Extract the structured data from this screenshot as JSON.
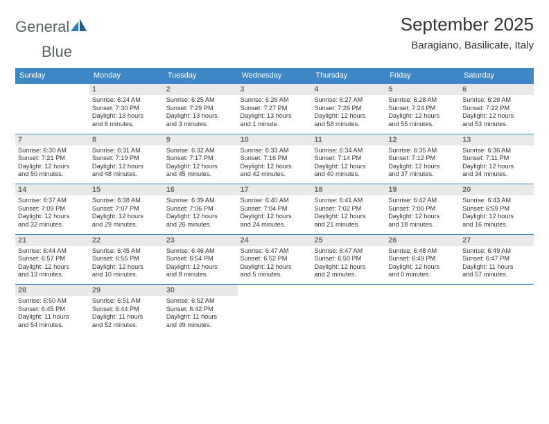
{
  "brand": {
    "word1": "General",
    "word2": "Blue"
  },
  "title": "September 2025",
  "location": "Baragiano, Basilicate, Italy",
  "colors": {
    "header_bg": "#3d87c7",
    "header_text": "#ffffff",
    "daynum_bg": "#e9e9e9",
    "daynum_text": "#6f6f6f",
    "row_divider": "#3d87c7",
    "body_text": "#333333",
    "logo_gray": "#5b6266",
    "logo_blue": "#2a7bbd",
    "background": "#ffffff"
  },
  "weekdays": [
    "Sunday",
    "Monday",
    "Tuesday",
    "Wednesday",
    "Thursday",
    "Friday",
    "Saturday"
  ],
  "weeks": [
    [
      {
        "n": "",
        "sr": "",
        "ss": "",
        "dl1": "",
        "dl2": ""
      },
      {
        "n": "1",
        "sr": "Sunrise: 6:24 AM",
        "ss": "Sunset: 7:30 PM",
        "dl1": "Daylight: 13 hours",
        "dl2": "and 6 minutes."
      },
      {
        "n": "2",
        "sr": "Sunrise: 6:25 AM",
        "ss": "Sunset: 7:29 PM",
        "dl1": "Daylight: 13 hours",
        "dl2": "and 3 minutes."
      },
      {
        "n": "3",
        "sr": "Sunrise: 6:26 AM",
        "ss": "Sunset: 7:27 PM",
        "dl1": "Daylight: 13 hours",
        "dl2": "and 1 minute."
      },
      {
        "n": "4",
        "sr": "Sunrise: 6:27 AM",
        "ss": "Sunset: 7:26 PM",
        "dl1": "Daylight: 12 hours",
        "dl2": "and 58 minutes."
      },
      {
        "n": "5",
        "sr": "Sunrise: 6:28 AM",
        "ss": "Sunset: 7:24 PM",
        "dl1": "Daylight: 12 hours",
        "dl2": "and 55 minutes."
      },
      {
        "n": "6",
        "sr": "Sunrise: 6:29 AM",
        "ss": "Sunset: 7:22 PM",
        "dl1": "Daylight: 12 hours",
        "dl2": "and 53 minutes."
      }
    ],
    [
      {
        "n": "7",
        "sr": "Sunrise: 6:30 AM",
        "ss": "Sunset: 7:21 PM",
        "dl1": "Daylight: 12 hours",
        "dl2": "and 50 minutes."
      },
      {
        "n": "8",
        "sr": "Sunrise: 6:31 AM",
        "ss": "Sunset: 7:19 PM",
        "dl1": "Daylight: 12 hours",
        "dl2": "and 48 minutes."
      },
      {
        "n": "9",
        "sr": "Sunrise: 6:32 AM",
        "ss": "Sunset: 7:17 PM",
        "dl1": "Daylight: 12 hours",
        "dl2": "and 45 minutes."
      },
      {
        "n": "10",
        "sr": "Sunrise: 6:33 AM",
        "ss": "Sunset: 7:16 PM",
        "dl1": "Daylight: 12 hours",
        "dl2": "and 42 minutes."
      },
      {
        "n": "11",
        "sr": "Sunrise: 6:34 AM",
        "ss": "Sunset: 7:14 PM",
        "dl1": "Daylight: 12 hours",
        "dl2": "and 40 minutes."
      },
      {
        "n": "12",
        "sr": "Sunrise: 6:35 AM",
        "ss": "Sunset: 7:12 PM",
        "dl1": "Daylight: 12 hours",
        "dl2": "and 37 minutes."
      },
      {
        "n": "13",
        "sr": "Sunrise: 6:36 AM",
        "ss": "Sunset: 7:11 PM",
        "dl1": "Daylight: 12 hours",
        "dl2": "and 34 minutes."
      }
    ],
    [
      {
        "n": "14",
        "sr": "Sunrise: 6:37 AM",
        "ss": "Sunset: 7:09 PM",
        "dl1": "Daylight: 12 hours",
        "dl2": "and 32 minutes."
      },
      {
        "n": "15",
        "sr": "Sunrise: 6:38 AM",
        "ss": "Sunset: 7:07 PM",
        "dl1": "Daylight: 12 hours",
        "dl2": "and 29 minutes."
      },
      {
        "n": "16",
        "sr": "Sunrise: 6:39 AM",
        "ss": "Sunset: 7:06 PM",
        "dl1": "Daylight: 12 hours",
        "dl2": "and 26 minutes."
      },
      {
        "n": "17",
        "sr": "Sunrise: 6:40 AM",
        "ss": "Sunset: 7:04 PM",
        "dl1": "Daylight: 12 hours",
        "dl2": "and 24 minutes."
      },
      {
        "n": "18",
        "sr": "Sunrise: 6:41 AM",
        "ss": "Sunset: 7:02 PM",
        "dl1": "Daylight: 12 hours",
        "dl2": "and 21 minutes."
      },
      {
        "n": "19",
        "sr": "Sunrise: 6:42 AM",
        "ss": "Sunset: 7:00 PM",
        "dl1": "Daylight: 12 hours",
        "dl2": "and 18 minutes."
      },
      {
        "n": "20",
        "sr": "Sunrise: 6:43 AM",
        "ss": "Sunset: 6:59 PM",
        "dl1": "Daylight: 12 hours",
        "dl2": "and 16 minutes."
      }
    ],
    [
      {
        "n": "21",
        "sr": "Sunrise: 6:44 AM",
        "ss": "Sunset: 6:57 PM",
        "dl1": "Daylight: 12 hours",
        "dl2": "and 13 minutes."
      },
      {
        "n": "22",
        "sr": "Sunrise: 6:45 AM",
        "ss": "Sunset: 6:55 PM",
        "dl1": "Daylight: 12 hours",
        "dl2": "and 10 minutes."
      },
      {
        "n": "23",
        "sr": "Sunrise: 6:46 AM",
        "ss": "Sunset: 6:54 PM",
        "dl1": "Daylight: 12 hours",
        "dl2": "and 8 minutes."
      },
      {
        "n": "24",
        "sr": "Sunrise: 6:47 AM",
        "ss": "Sunset: 6:52 PM",
        "dl1": "Daylight: 12 hours",
        "dl2": "and 5 minutes."
      },
      {
        "n": "25",
        "sr": "Sunrise: 6:47 AM",
        "ss": "Sunset: 6:50 PM",
        "dl1": "Daylight: 12 hours",
        "dl2": "and 2 minutes."
      },
      {
        "n": "26",
        "sr": "Sunrise: 6:48 AM",
        "ss": "Sunset: 6:49 PM",
        "dl1": "Daylight: 12 hours",
        "dl2": "and 0 minutes."
      },
      {
        "n": "27",
        "sr": "Sunrise: 6:49 AM",
        "ss": "Sunset: 6:47 PM",
        "dl1": "Daylight: 11 hours",
        "dl2": "and 57 minutes."
      }
    ],
    [
      {
        "n": "28",
        "sr": "Sunrise: 6:50 AM",
        "ss": "Sunset: 6:45 PM",
        "dl1": "Daylight: 11 hours",
        "dl2": "and 54 minutes."
      },
      {
        "n": "29",
        "sr": "Sunrise: 6:51 AM",
        "ss": "Sunset: 6:44 PM",
        "dl1": "Daylight: 11 hours",
        "dl2": "and 52 minutes."
      },
      {
        "n": "30",
        "sr": "Sunrise: 6:52 AM",
        "ss": "Sunset: 6:42 PM",
        "dl1": "Daylight: 11 hours",
        "dl2": "and 49 minutes."
      },
      {
        "n": "",
        "sr": "",
        "ss": "",
        "dl1": "",
        "dl2": ""
      },
      {
        "n": "",
        "sr": "",
        "ss": "",
        "dl1": "",
        "dl2": ""
      },
      {
        "n": "",
        "sr": "",
        "ss": "",
        "dl1": "",
        "dl2": ""
      },
      {
        "n": "",
        "sr": "",
        "ss": "",
        "dl1": "",
        "dl2": ""
      }
    ]
  ]
}
